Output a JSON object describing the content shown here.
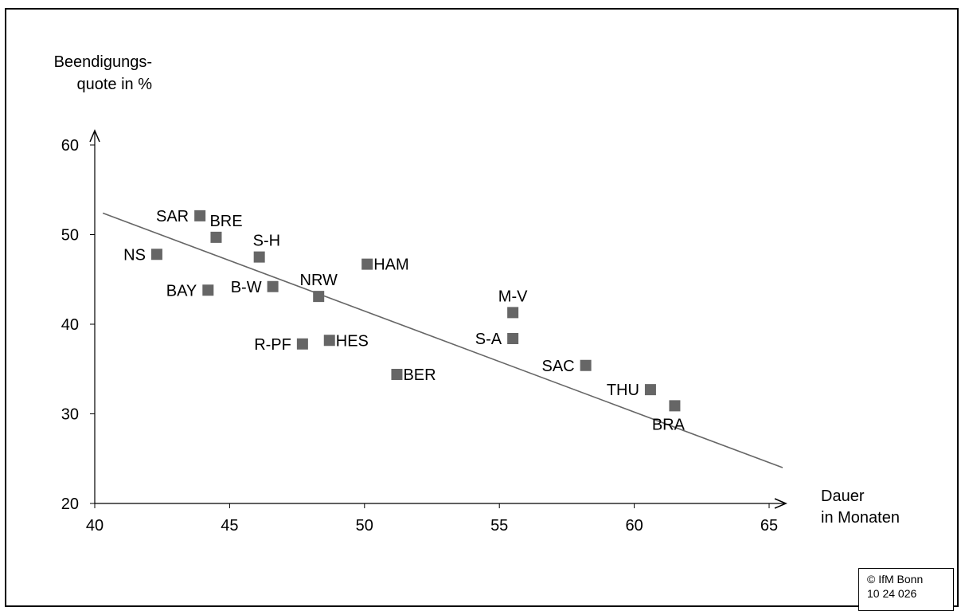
{
  "chart_data": {
    "type": "scatter",
    "title": "",
    "ylabel_lines": [
      "Beendigungs-",
      "quote in %"
    ],
    "xlabel_lines": [
      "Dauer",
      "in Monaten"
    ],
    "xlim": [
      40,
      65
    ],
    "ylim": [
      20,
      60
    ],
    "xticks": [
      40,
      45,
      50,
      55,
      60,
      65
    ],
    "yticks": [
      20,
      30,
      40,
      50,
      60
    ],
    "grid": false,
    "marker_color": "#666666",
    "trendline": {
      "x": [
        40.3,
        65.5
      ],
      "y": [
        52.4,
        24.0
      ],
      "color": "#666666"
    },
    "points": [
      {
        "label": "SAR",
        "x": 43.9,
        "y": 52.1,
        "label_pos": "left"
      },
      {
        "label": "BRE",
        "x": 44.5,
        "y": 49.7,
        "label_pos": "above-right"
      },
      {
        "label": "NS",
        "x": 42.3,
        "y": 47.8,
        "label_pos": "left"
      },
      {
        "label": "S-H",
        "x": 46.1,
        "y": 47.5,
        "label_pos": "above-right"
      },
      {
        "label": "HAM",
        "x": 50.1,
        "y": 46.7,
        "label_pos": "right"
      },
      {
        "label": "BAY",
        "x": 44.2,
        "y": 43.8,
        "label_pos": "left"
      },
      {
        "label": "B-W",
        "x": 46.6,
        "y": 44.2,
        "label_pos": "left"
      },
      {
        "label": "NRW",
        "x": 48.3,
        "y": 43.1,
        "label_pos": "above"
      },
      {
        "label": "M-V",
        "x": 55.5,
        "y": 41.3,
        "label_pos": "above"
      },
      {
        "label": "R-PF",
        "x": 47.7,
        "y": 37.8,
        "label_pos": "left"
      },
      {
        "label": "HES",
        "x": 48.7,
        "y": 38.2,
        "label_pos": "right"
      },
      {
        "label": "S-A",
        "x": 55.5,
        "y": 38.4,
        "label_pos": "left"
      },
      {
        "label": "BER",
        "x": 51.2,
        "y": 34.4,
        "label_pos": "right"
      },
      {
        "label": "SAC",
        "x": 58.2,
        "y": 35.4,
        "label_pos": "left"
      },
      {
        "label": "THU",
        "x": 60.6,
        "y": 32.7,
        "label_pos": "left"
      },
      {
        "label": "BRA",
        "x": 61.5,
        "y": 30.9,
        "label_pos": "below"
      }
    ]
  },
  "footer": {
    "copyright_line1": "© IfM Bonn",
    "copyright_line2": "10 24 026"
  }
}
